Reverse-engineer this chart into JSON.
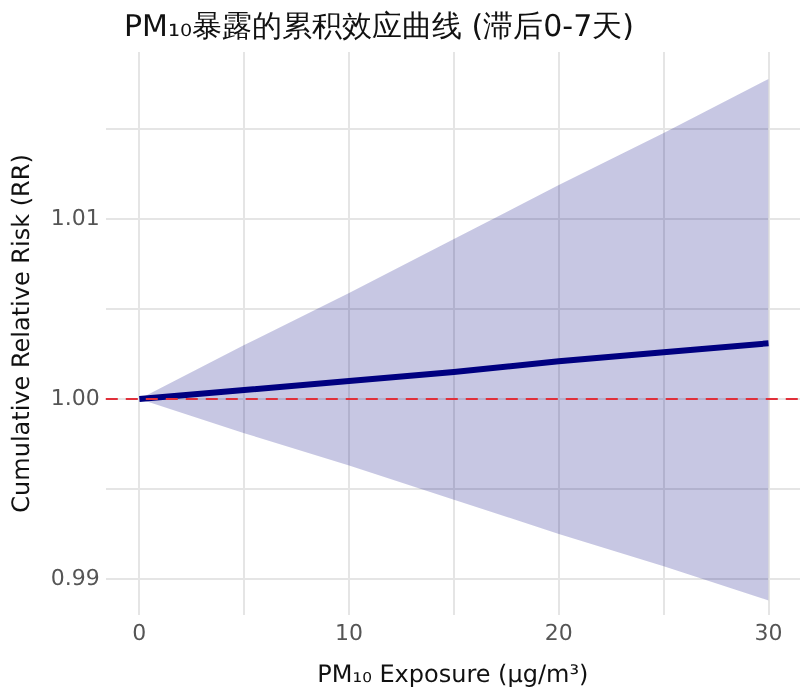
{
  "chart_data": {
    "type": "line",
    "title": "PM₁₀暴露的累积效应曲线 (滞后0-7天)",
    "xlabel": "PM₁₀ Exposure (μg/m³)",
    "ylabel": "Cumulative Relative Risk (RR)",
    "x": [
      0,
      5,
      10,
      15,
      20,
      25,
      30
    ],
    "series": [
      {
        "color": "#000080",
        "values": [
          1.0,
          1.0005,
          1.001,
          1.0015,
          1.0021,
          1.0026,
          1.0031
        ],
        "upper": [
          1.0,
          1.003,
          1.0059,
          1.0089,
          1.0119,
          1.0148,
          1.0178
        ],
        "lower": [
          1.0,
          0.9981,
          0.9963,
          0.9944,
          0.9925,
          0.9907,
          0.9888
        ]
      }
    ],
    "xlim": [
      -1.6,
      31.5
    ],
    "xticks": [
      0,
      {
        "value": 5,
        "label": null
      },
      10,
      {
        "value": 15,
        "label": null
      },
      20,
      {
        "value": 25,
        "label": null
      },
      30
    ],
    "ylim": [
      0.988,
      1.0193
    ],
    "yticks": [
      {
        "value": 0.99,
        "label": "0.99"
      },
      {
        "value": 0.995,
        "label": null
      },
      {
        "value": 1.0,
        "label": "1.00"
      },
      {
        "value": 1.005,
        "label": null
      },
      {
        "value": 1.01,
        "label": "1.01"
      },
      {
        "value": 1.015,
        "label": null
      }
    ],
    "ref_lines": [
      {
        "axis": "y",
        "value": 1.0,
        "color": "#e0303a",
        "line_style": "dashed"
      }
    ],
    "grid": true,
    "legend": false,
    "marker": "none",
    "line_style": "solid"
  }
}
